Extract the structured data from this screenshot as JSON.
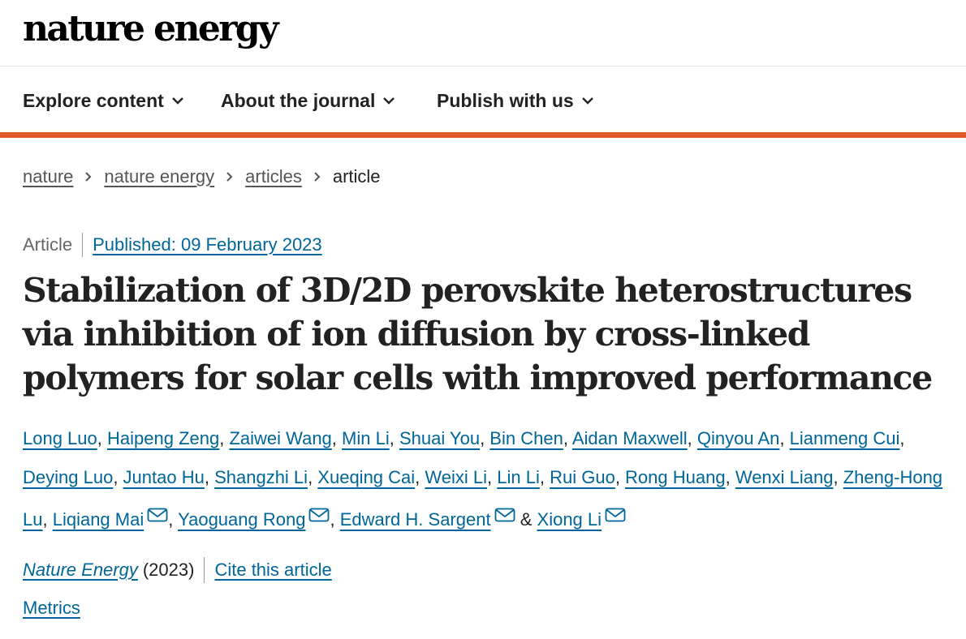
{
  "header": {
    "logo_text": "nature energy"
  },
  "nav": {
    "items": [
      {
        "label": "Explore content",
        "icon": "chevron-down-icon"
      },
      {
        "label": "About the journal",
        "icon": "chevron-down-icon"
      },
      {
        "label": "Publish with us",
        "icon": "chevron-down-icon"
      }
    ],
    "accent_color": "#e05b2a"
  },
  "breadcrumb": {
    "items": [
      "nature",
      "nature energy",
      "articles"
    ],
    "current": "article"
  },
  "article": {
    "type": "Article",
    "published": "Published: 09 February 2023",
    "title": "Stabilization of 3D/2D perovskite heterostructures via inhibition of ion diffusion by cross-linked polymers for solar cells with improved performance",
    "authors": [
      "Long Luo",
      "Haipeng Zeng",
      "Zaiwei Wang",
      "Min Li",
      "Shuai You",
      "Bin Chen",
      "Aidan Maxwell",
      "Qinyou An",
      "Lianmeng Cui",
      "Deying Luo",
      "Juntao Hu",
      "Shangzhi Li",
      "Xueqing Cai",
      "Weixi Li",
      "Lin Li",
      "Rui Guo",
      "Rong Huang",
      "Wenxi Liang",
      "Zheng-Hong Lu",
      "Liqiang Mai",
      "Yaoguang Rong",
      "Edward H. Sargent",
      "Xiong Li"
    ],
    "ampersand": "&",
    "journal": "Nature Energy",
    "year": "(2023)",
    "cite_label": "Cite this article",
    "metrics_label": "Metrics",
    "link_color": "#006699"
  }
}
